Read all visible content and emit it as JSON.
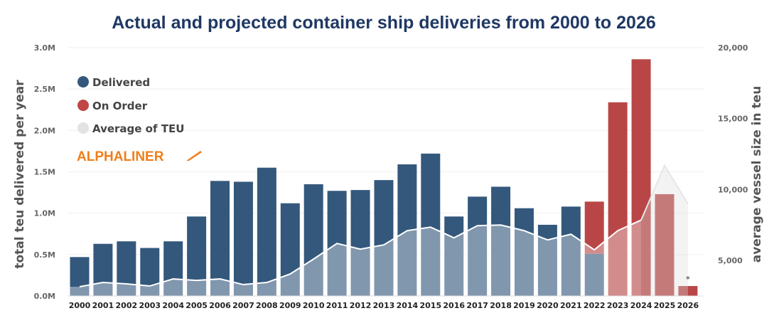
{
  "chart_data": {
    "type": "bar",
    "title": "Actual and projected container ship deliveries from 2000 to 2026",
    "ylabel": "total teu delivered per year",
    "y2label": "average vessel size in teu",
    "ylim": [
      0,
      3000000
    ],
    "y2lim": [
      2500,
      20000
    ],
    "yticks": [
      "0.0M",
      "0.5M",
      "1.0M",
      "1.5M",
      "2.0M",
      "2.5M",
      "3.0M"
    ],
    "y2ticks": [
      "5,000",
      "10,000",
      "15,000",
      "20,000"
    ],
    "categories": [
      "2000",
      "2001",
      "2002",
      "2003",
      "2004",
      "2005",
      "2006",
      "2007",
      "2008",
      "2009",
      "2010",
      "2011",
      "2012",
      "2013",
      "2014",
      "2015",
      "2016",
      "2017",
      "2018",
      "2019",
      "2020",
      "2021",
      "2022",
      "2023",
      "2024",
      "2025",
      "2026"
    ],
    "series": [
      {
        "name": "Delivered",
        "axis": "left",
        "color": "#34587c",
        "values": [
          470000,
          630000,
          660000,
          580000,
          660000,
          960000,
          1390000,
          1380000,
          1550000,
          1120000,
          1350000,
          1270000,
          1280000,
          1400000,
          1590000,
          1720000,
          960000,
          1200000,
          1320000,
          1060000,
          860000,
          1080000,
          510000,
          0,
          0,
          0,
          0
        ]
      },
      {
        "name": "On Order",
        "axis": "right-stack",
        "color": "#b94646",
        "values": [
          0,
          0,
          0,
          0,
          0,
          0,
          0,
          0,
          0,
          0,
          0,
          0,
          0,
          0,
          0,
          0,
          0,
          0,
          0,
          0,
          0,
          0,
          630000,
          2340000,
          2860000,
          1230000,
          120000
        ]
      },
      {
        "name": "Average of TEU",
        "axis": "right",
        "color": "#e0e0e0",
        "values": [
          3150,
          3450,
          3350,
          3200,
          3700,
          3600,
          3700,
          3300,
          3450,
          4050,
          5100,
          6200,
          5800,
          6100,
          7100,
          7350,
          6600,
          7450,
          7500,
          7100,
          6450,
          6850,
          5750,
          7100,
          7850,
          11700,
          9000
        ]
      }
    ],
    "annotations": [
      {
        "category": "2026",
        "text": "*"
      }
    ],
    "legend_placement": "top-left",
    "grid": true
  },
  "logo": "ALPHALINER"
}
